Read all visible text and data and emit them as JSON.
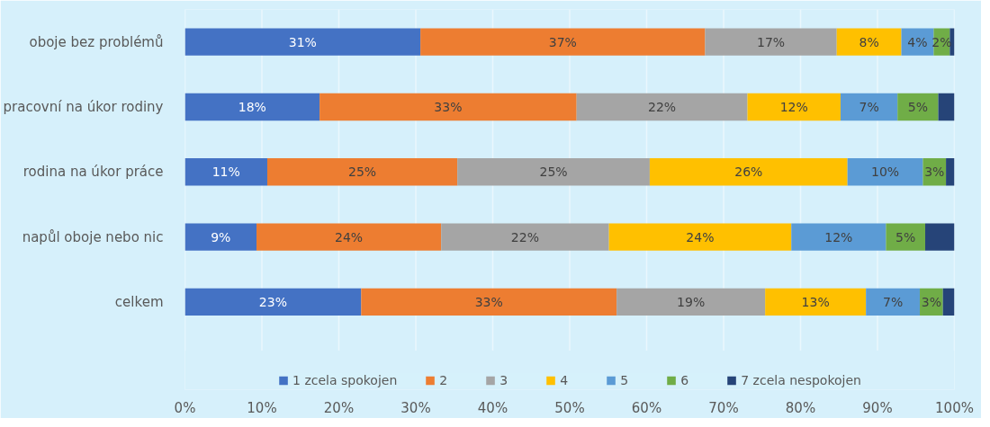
{
  "chart_data": {
    "type": "bar",
    "orientation": "horizontal",
    "stacked": true,
    "categories": [
      "oboje bez problémů",
      "pracovní na úkor rodiny",
      "rodina na úkor práce",
      "napůl oboje nebo nic",
      "celkem"
    ],
    "series": [
      {
        "name": "1 zcela spokojen",
        "color": "#4472c4",
        "values": [
          30.6,
          17.5,
          10.7,
          9.3,
          22.9
        ],
        "value_labels": [
          "31%",
          "18%",
          "11%",
          "9%",
          "23%"
        ]
      },
      {
        "name": "2",
        "color": "#ed7d31",
        "values": [
          37.0,
          33.4,
          24.7,
          24.0,
          33.2
        ],
        "value_labels": [
          "37%",
          "33%",
          "25%",
          "24%",
          "33%"
        ]
      },
      {
        "name": "3",
        "color": "#a5a5a5",
        "values": [
          17.1,
          22.2,
          25.0,
          21.8,
          19.3
        ],
        "value_labels": [
          "17%",
          "22%",
          "25%",
          "22%",
          "19%"
        ]
      },
      {
        "name": "4",
        "color": "#ffc000",
        "values": [
          8.4,
          12.1,
          25.7,
          23.7,
          13.1
        ],
        "value_labels": [
          "8%",
          "12%",
          "26%",
          "24%",
          "13%"
        ]
      },
      {
        "name": "5",
        "color": "#5b9bd5",
        "values": [
          4.2,
          7.4,
          9.8,
          12.3,
          7.0
        ],
        "value_labels": [
          "4%",
          "7%",
          "10%",
          "12%",
          "7%"
        ]
      },
      {
        "name": "6",
        "color": "#70ad47",
        "values": [
          2.1,
          5.3,
          3.0,
          5.1,
          3.0
        ],
        "value_labels": [
          "2%",
          "5%",
          "3%",
          "5%",
          "3%"
        ]
      },
      {
        "name": "7 zcela nespokojen",
        "color": "#264478",
        "values": [
          0.6,
          2.1,
          1.1,
          3.8,
          1.5
        ],
        "value_labels": [
          null,
          null,
          null,
          null,
          null
        ]
      }
    ],
    "xlim": [
      0,
      100
    ],
    "xticks": [
      {
        "value": 0,
        "label": "0%"
      },
      {
        "value": 10,
        "label": "10%"
      },
      {
        "value": 20,
        "label": "20%"
      },
      {
        "value": 30,
        "label": "30%"
      },
      {
        "value": 40,
        "label": "40%"
      },
      {
        "value": 50,
        "label": "50%"
      },
      {
        "value": 60,
        "label": "60%"
      },
      {
        "value": 70,
        "label": "70%"
      },
      {
        "value": 80,
        "label": "80%"
      },
      {
        "value": 90,
        "label": "90%"
      },
      {
        "value": 100,
        "label": "100%"
      }
    ],
    "grid": "x",
    "legend": "bottom"
  }
}
